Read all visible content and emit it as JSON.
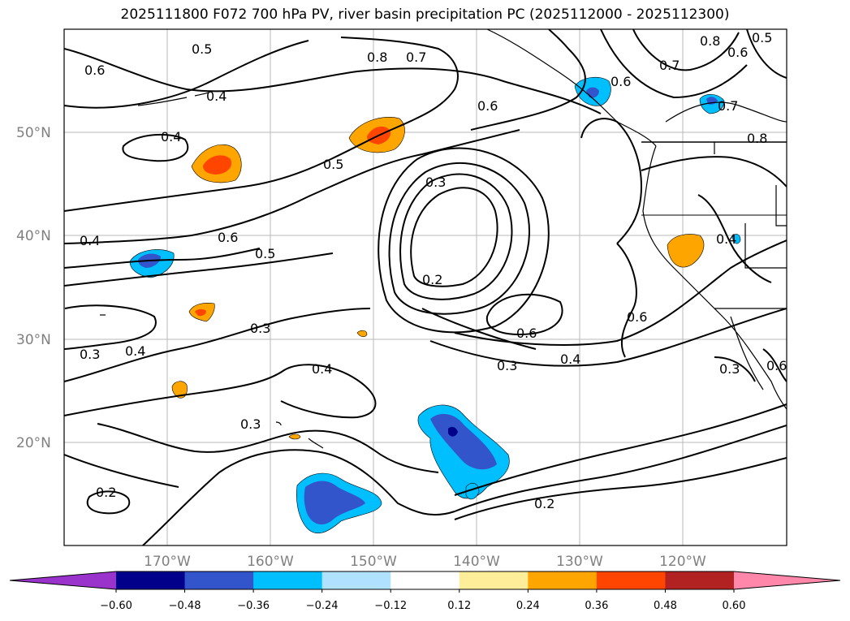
{
  "title": "2025111800 F072 700 hPa PV, river basin precipitation PC (2025112000 - 2025112300)",
  "map": {
    "lat_ticks": [
      "20°N",
      "30°N",
      "40°N",
      "50°N"
    ],
    "lon_ticks": [
      "170°W",
      "160°W",
      "150°W",
      "140°W",
      "130°W",
      "120°W"
    ],
    "grid": true,
    "contour_labels": [
      "0.6",
      "0.5",
      "0.4",
      "0.8",
      "0.7",
      "0.6",
      "0.6",
      "0.7",
      "0.8",
      "0.4",
      "0.5",
      "0.4",
      "0.3",
      "0.6",
      "0.5",
      "0.2",
      "0.4",
      "0.3",
      "0.3",
      "0.4",
      "0.4",
      "0.6",
      "0.3",
      "0.4",
      "0.6",
      "0.3",
      "0.3",
      "0.2",
      "0.2",
      "0.8",
      "0.5",
      "0.6",
      "0.7",
      "0.6"
    ]
  },
  "colorbar": {
    "ticks": [
      "−0.60",
      "−0.48",
      "−0.36",
      "−0.24",
      "−0.12",
      "0.12",
      "0.24",
      "0.36",
      "0.48",
      "0.60"
    ],
    "colors": [
      "#9933cc",
      "#00008b",
      "#3355cc",
      "#00bfff",
      "#b0e2ff",
      "#ffffff",
      "#ffee99",
      "#ffa500",
      "#ff4500",
      "#b22222",
      "#ff88aa"
    ]
  }
}
